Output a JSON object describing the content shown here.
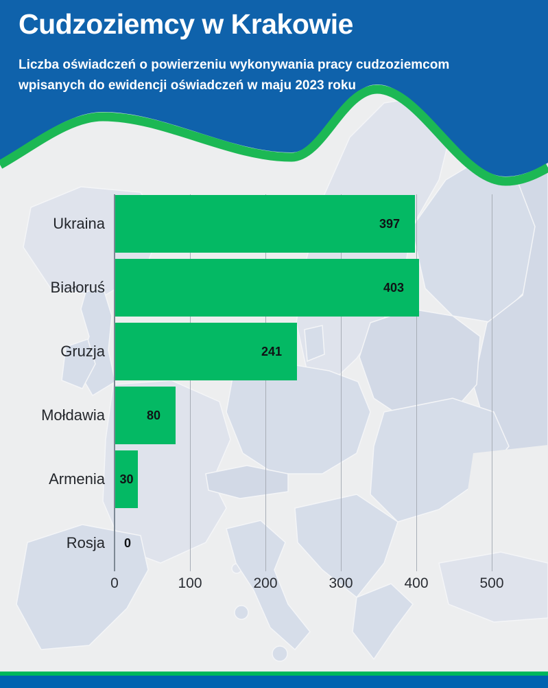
{
  "header": {
    "title": "Cudzoziemcy w Krakowie",
    "subtitle": "Liczba oświadczeń o powierzeniu wykonywania pracy cudzoziemcom wpisanych do ewidencji oświadczeń w maju 2023 roku"
  },
  "chart_data": {
    "type": "bar",
    "orientation": "horizontal",
    "title": "Cudzoziemcy w Krakowie",
    "categories": [
      "Ukraina",
      "Białoruś",
      "Gruzja",
      "Mołdawia",
      "Armenia",
      "Rosja"
    ],
    "values": [
      397,
      403,
      241,
      80,
      30,
      0
    ],
    "value_labels": [
      "397",
      "403",
      "241",
      "80",
      "30",
      "0"
    ],
    "x_ticks": [
      "0",
      "100",
      "200",
      "300",
      "400",
      "500"
    ],
    "xlim": [
      0,
      500
    ],
    "grid": true,
    "legend": "none"
  },
  "colors": {
    "header_blue": "#0f62ab",
    "footer_blue": "#0063b0",
    "bar_green": "#04b964",
    "wave_green": "#1cb854",
    "footer_green": "#00b75c",
    "sea_gray": "#edeeef",
    "land_main": "#d6dde9",
    "land_light": "#dfe3ec",
    "land_dark": "#d2d9e6",
    "axis_line": "#7d8894",
    "gridline": "#a7adb6"
  }
}
